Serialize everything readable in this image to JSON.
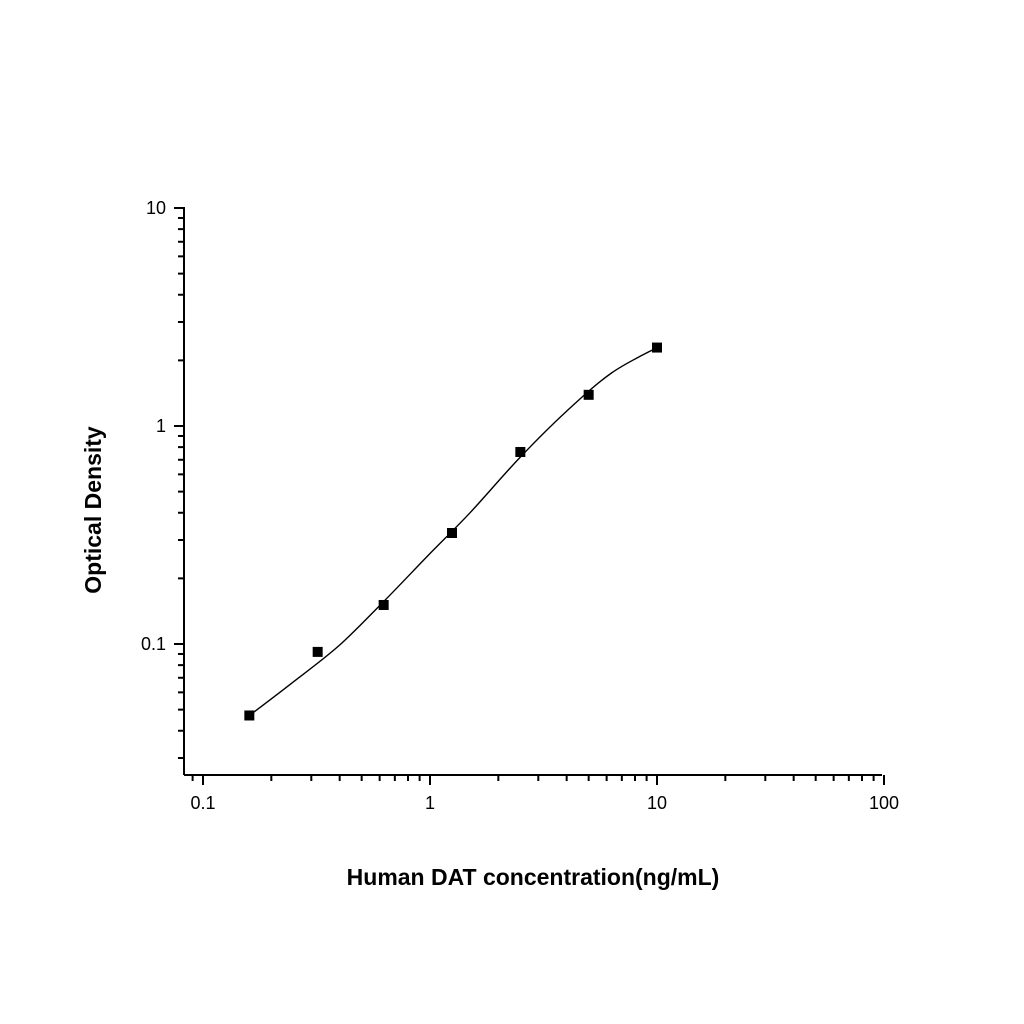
{
  "chart_data": {
    "type": "scatter",
    "title": "",
    "xlabel": "Human DAT concentration(ng/mL)",
    "ylabel": "Optical Density",
    "x_scale": "log",
    "y_scale": "log",
    "xlim": [
      0.09,
      100
    ],
    "ylim": [
      0.025,
      10
    ],
    "x_ticks": [
      {
        "value": 0.1,
        "label": "0.1"
      },
      {
        "value": 1,
        "label": "1"
      },
      {
        "value": 10,
        "label": "10"
      },
      {
        "value": 100,
        "label": "100"
      }
    ],
    "y_ticks": [
      {
        "value": 0.1,
        "label": "0.1"
      },
      {
        "value": 1,
        "label": "1"
      },
      {
        "value": 10,
        "label": "10"
      }
    ],
    "grid": false,
    "legend": "none",
    "series": [
      {
        "marker": "square",
        "color": "#000000",
        "x": [
          0.16,
          0.32,
          0.625,
          1.25,
          2.5,
          5,
          10
        ],
        "y": [
          0.047,
          0.092,
          0.151,
          0.323,
          0.76,
          1.39,
          2.29
        ]
      }
    ],
    "fit_curve": {
      "color": "#000000",
      "x": [
        0.16,
        0.25,
        0.4,
        0.63,
        1.0,
        1.5,
        2.5,
        4.0,
        6.3,
        10
      ],
      "y": [
        0.047,
        0.067,
        0.099,
        0.158,
        0.26,
        0.4,
        0.72,
        1.17,
        1.75,
        2.29
      ]
    }
  }
}
